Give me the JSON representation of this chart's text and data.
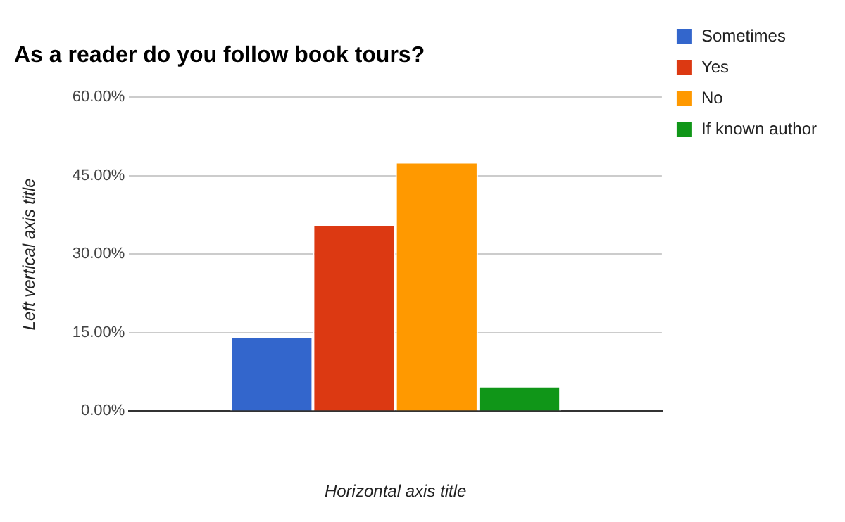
{
  "chart_data": {
    "type": "bar",
    "title": "As a reader do you follow book tours?",
    "xlabel": "Horizontal axis title",
    "ylabel": "Left vertical axis title",
    "categories": [
      null
    ],
    "series": [
      {
        "name": "Sometimes",
        "color": "#3366cc",
        "values": [
          14.3
        ]
      },
      {
        "name": "Yes",
        "color": "#dc3912",
        "values": [
          35.7
        ]
      },
      {
        "name": "No",
        "color": "#ff9900",
        "values": [
          47.6
        ]
      },
      {
        "name": "If known author",
        "color": "#109618",
        "values": [
          4.8
        ]
      }
    ],
    "ylim": [
      0,
      60
    ],
    "yticks": [
      {
        "value": 0,
        "label": "0.00%"
      },
      {
        "value": 15,
        "label": "15.00%"
      },
      {
        "value": 30,
        "label": "30.00%"
      },
      {
        "value": 45,
        "label": "45.00%"
      },
      {
        "value": 60,
        "label": "60.00%"
      }
    ],
    "grid": "y",
    "legend": "right"
  }
}
